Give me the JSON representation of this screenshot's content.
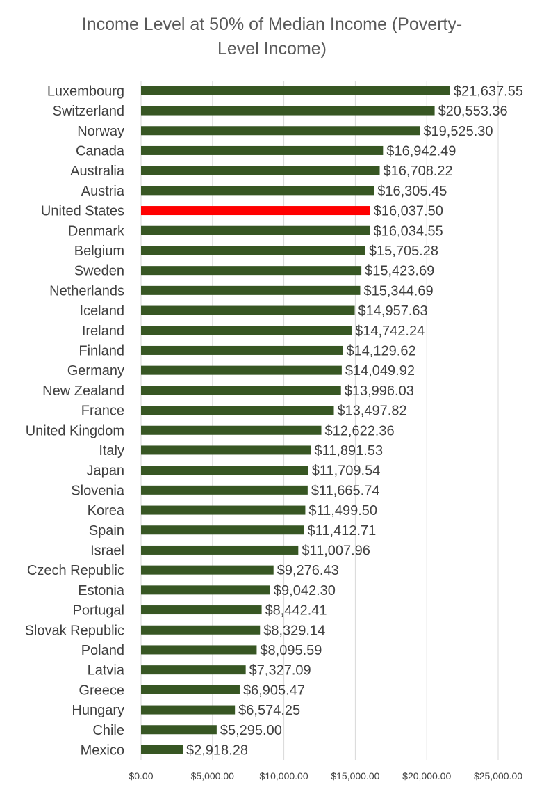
{
  "chart_data": {
    "type": "bar",
    "orientation": "horizontal",
    "title_lines": [
      "Income Level at 50% of Median Income (Poverty-",
      "Level Income)"
    ],
    "xlabel": "",
    "ylabel": "",
    "xlim": [
      0,
      25000
    ],
    "x_ticks": [
      0,
      5000,
      10000,
      15000,
      20000,
      25000
    ],
    "x_tick_labels": [
      "$0.00",
      "$5,000.00",
      "$10,000.00",
      "$15,000.00",
      "$20,000.00",
      "$25,000.00"
    ],
    "grid": "vertical gridlines",
    "legend": "none",
    "colors": {
      "default_bar": "#375623",
      "highlight_bar": "#ff0000",
      "gridline": "#d9d9d9",
      "text": "#404040",
      "title": "#595959"
    },
    "highlight_category": "United States",
    "categories": [
      "Luxembourg",
      "Switzerland",
      "Norway",
      "Canada",
      "Australia",
      "Austria",
      "United States",
      "Denmark",
      "Belgium",
      "Sweden",
      "Netherlands",
      "Iceland",
      "Ireland",
      "Finland",
      "Germany",
      "New Zealand",
      "France",
      "United Kingdom",
      "Italy",
      "Japan",
      "Slovenia",
      "Korea",
      "Spain",
      "Israel",
      "Czech Republic",
      "Estonia",
      "Portugal",
      "Slovak Republic",
      "Poland",
      "Latvia",
      "Greece",
      "Hungary",
      "Chile",
      "Mexico"
    ],
    "values": [
      21637.55,
      20553.36,
      19525.3,
      16942.49,
      16708.22,
      16305.45,
      16037.5,
      16034.55,
      15705.28,
      15423.69,
      15344.69,
      14957.63,
      14742.24,
      14129.62,
      14049.92,
      13996.03,
      13497.82,
      12622.36,
      11891.53,
      11709.54,
      11665.74,
      11499.5,
      11412.71,
      11007.96,
      9276.43,
      9042.3,
      8442.41,
      8329.14,
      8095.59,
      7327.09,
      6905.47,
      6574.25,
      5295.0,
      2918.28
    ],
    "data_labels": [
      "$21,637.55",
      "$20,553.36",
      "$19,525.30",
      "$16,942.49",
      "$16,708.22",
      "$16,305.45",
      "$16,037.50",
      "$16,034.55",
      "$15,705.28",
      "$15,423.69",
      "$15,344.69",
      "$14,957.63",
      "$14,742.24",
      "$14,129.62",
      "$14,049.92",
      "$13,996.03",
      "$13,497.82",
      "$12,622.36",
      "$11,891.53",
      "$11,709.54",
      "$11,665.74",
      "$11,499.50",
      "$11,412.71",
      "$11,007.96",
      "$9,276.43",
      "$9,042.30",
      "$8,442.41",
      "$8,329.14",
      "$8,095.59",
      "$7,327.09",
      "$6,905.47",
      "$6,574.25",
      "$5,295.00",
      "$2,918.28"
    ]
  }
}
